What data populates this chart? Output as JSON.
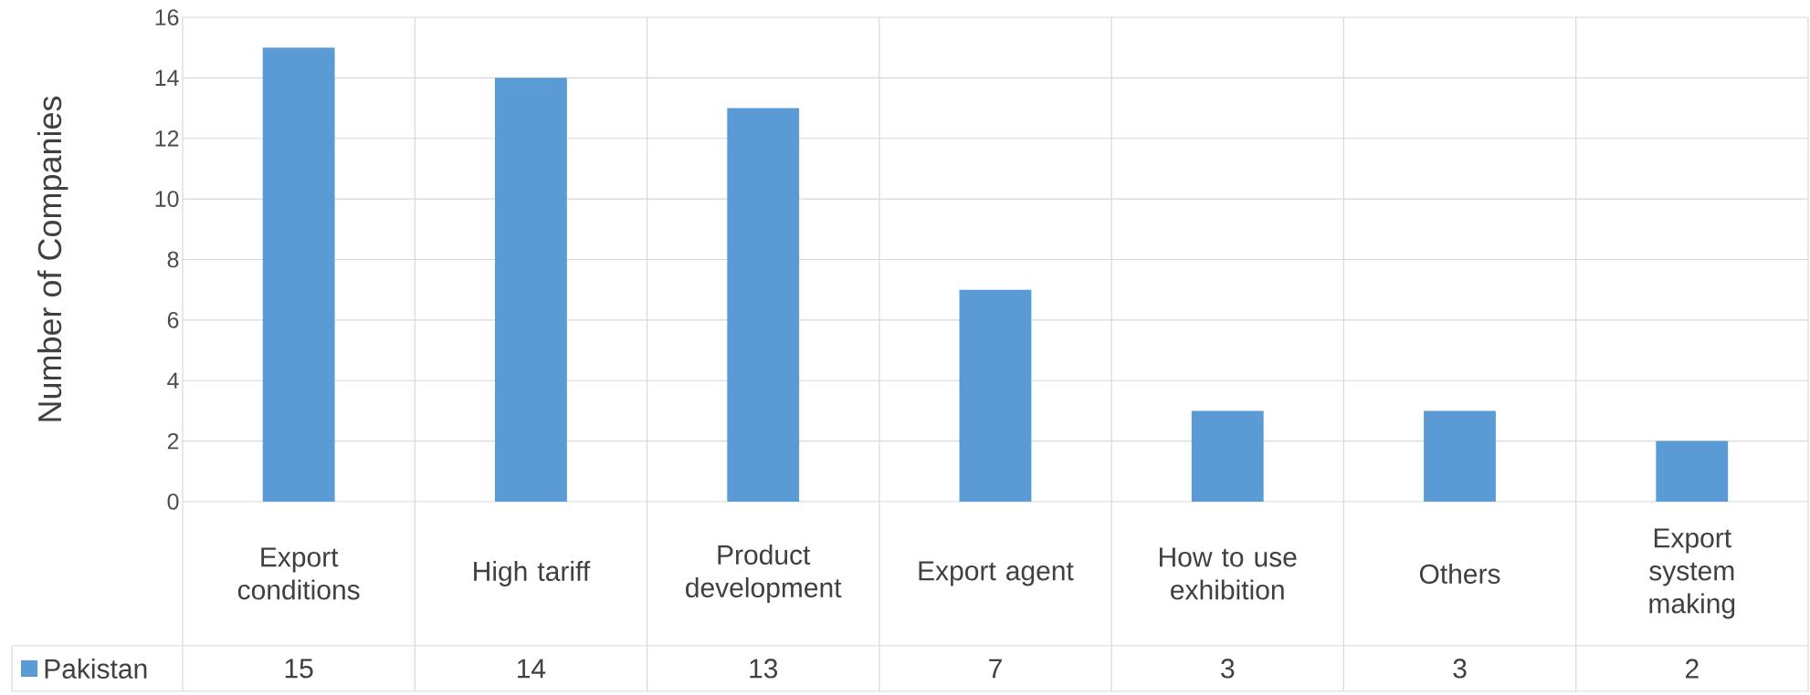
{
  "chart_data": {
    "type": "bar",
    "ylabel": "Number of Companies",
    "categories": [
      "Export conditions",
      "High tariff",
      "Product development",
      "Export agent",
      "How to use exhibition",
      "Others",
      "Export system making"
    ],
    "series": [
      {
        "name": "Pakistan",
        "color": "#5b9bd5",
        "values": [
          15,
          14,
          13,
          7,
          3,
          3,
          2
        ]
      }
    ],
    "ylim": [
      0,
      16
    ],
    "yticks": [
      0,
      2,
      4,
      6,
      8,
      10,
      12,
      14,
      16
    ],
    "grid": true,
    "legend": "bottom",
    "data_labels": true
  }
}
